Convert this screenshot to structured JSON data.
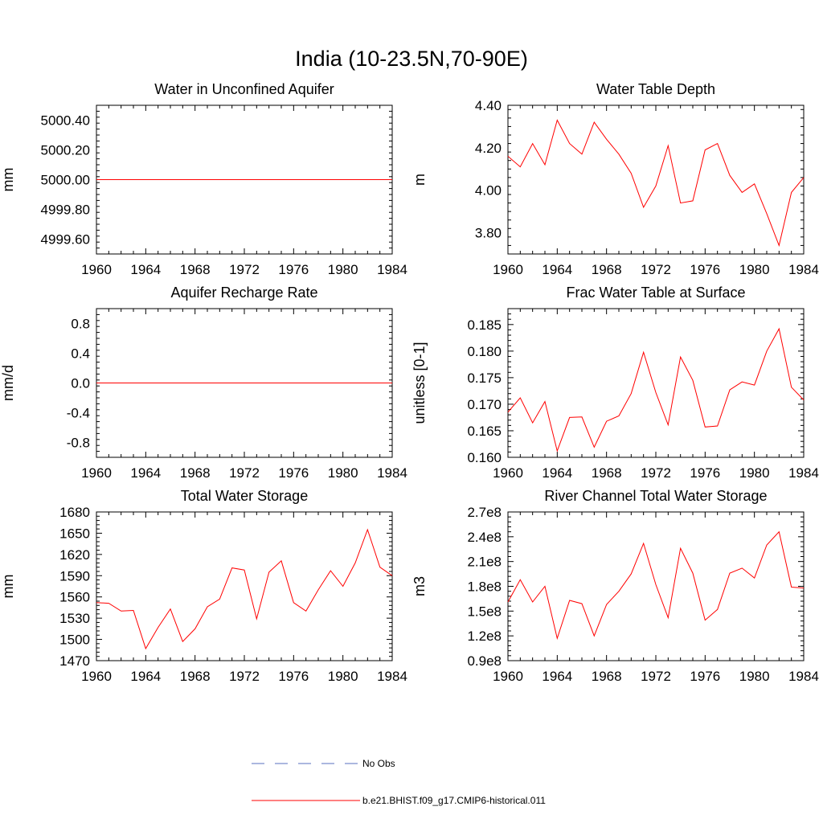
{
  "figure": {
    "title": "India (10-23.5N,70-90E)"
  },
  "legend": {
    "entries": [
      {
        "label": "No Obs",
        "color": "#5a6fbf",
        "style": "dashed"
      },
      {
        "label": "b.e21.BHIST.f09_g17.CMIP6-historical.011",
        "color": "#ff0000",
        "style": "solid"
      }
    ]
  },
  "chart_data": [
    {
      "type": "line",
      "title": "Water in Unconfined Aquifer",
      "ylabel": "mm",
      "xlim": [
        1960,
        1984
      ],
      "ylim": [
        4999.5,
        5000.5
      ],
      "xticks": [
        1960,
        1964,
        1968,
        1972,
        1976,
        1980,
        1984
      ],
      "yticks": [
        4999.6,
        4999.8,
        5000.0,
        5000.2,
        5000.4
      ],
      "ytick_labels": [
        "4999.60",
        "4999.80",
        "5000.00",
        "5000.20",
        "5000.40"
      ],
      "series": [
        {
          "color": "#ff0000",
          "x": [
            1960,
            1961,
            1962,
            1963,
            1964,
            1965,
            1966,
            1967,
            1968,
            1969,
            1970,
            1971,
            1972,
            1973,
            1974,
            1975,
            1976,
            1977,
            1978,
            1979,
            1980,
            1981,
            1982,
            1983,
            1984
          ],
          "y": [
            5000,
            5000,
            5000,
            5000,
            5000,
            5000,
            5000,
            5000,
            5000,
            5000,
            5000,
            5000,
            5000,
            5000,
            5000,
            5000,
            5000,
            5000,
            5000,
            5000,
            5000,
            5000,
            5000,
            5000,
            5000
          ]
        }
      ]
    },
    {
      "type": "line",
      "title": "Water Table Depth",
      "ylabel": "m",
      "xlim": [
        1960,
        1984
      ],
      "ylim": [
        3.7,
        4.4
      ],
      "xticks": [
        1960,
        1964,
        1968,
        1972,
        1976,
        1980,
        1984
      ],
      "yticks": [
        3.8,
        4.0,
        4.2,
        4.4
      ],
      "ytick_labels": [
        "3.80",
        "4.00",
        "4.20",
        "4.40"
      ],
      "series": [
        {
          "color": "#ff0000",
          "x": [
            1960,
            1961,
            1962,
            1963,
            1964,
            1965,
            1966,
            1967,
            1968,
            1969,
            1970,
            1971,
            1972,
            1973,
            1974,
            1975,
            1976,
            1977,
            1978,
            1979,
            1980,
            1981,
            1982,
            1983,
            1984
          ],
          "y": [
            4.16,
            4.11,
            4.22,
            4.12,
            4.33,
            4.22,
            4.17,
            4.32,
            4.24,
            4.17,
            4.08,
            3.92,
            4.02,
            4.21,
            3.94,
            3.95,
            4.19,
            4.22,
            4.07,
            3.99,
            4.03,
            3.89,
            3.74,
            3.99,
            4.06
          ]
        }
      ]
    },
    {
      "type": "line",
      "title": "Aquifer Recharge Rate",
      "ylabel": "mm/d",
      "xlim": [
        1960,
        1984
      ],
      "ylim": [
        -1.0,
        1.0
      ],
      "xticks": [
        1960,
        1964,
        1968,
        1972,
        1976,
        1980,
        1984
      ],
      "yticks": [
        -0.8,
        -0.4,
        0.0,
        0.4,
        0.8
      ],
      "ytick_labels": [
        "-0.8",
        "-0.4",
        "0.0",
        "0.4",
        "0.8"
      ],
      "series": [
        {
          "color": "#ff0000",
          "x": [
            1960,
            1961,
            1962,
            1963,
            1964,
            1965,
            1966,
            1967,
            1968,
            1969,
            1970,
            1971,
            1972,
            1973,
            1974,
            1975,
            1976,
            1977,
            1978,
            1979,
            1980,
            1981,
            1982,
            1983,
            1984
          ],
          "y": [
            0,
            0,
            0,
            0,
            0,
            0,
            0,
            0,
            0,
            0,
            0,
            0,
            0,
            0,
            0,
            0,
            0,
            0,
            0,
            0,
            0,
            0,
            0,
            0,
            0
          ]
        }
      ]
    },
    {
      "type": "line",
      "title": "Frac Water Table at Surface",
      "ylabel": "unitless [0-1]",
      "xlim": [
        1960,
        1984
      ],
      "ylim": [
        0.16,
        0.188
      ],
      "xticks": [
        1960,
        1964,
        1968,
        1972,
        1976,
        1980,
        1984
      ],
      "yticks": [
        0.16,
        0.165,
        0.17,
        0.175,
        0.18,
        0.185
      ],
      "ytick_labels": [
        "0.160",
        "0.165",
        "0.170",
        "0.175",
        "0.180",
        "0.185"
      ],
      "series": [
        {
          "color": "#ff0000",
          "x": [
            1960,
            1961,
            1962,
            1963,
            1964,
            1965,
            1966,
            1967,
            1968,
            1969,
            1970,
            1971,
            1972,
            1973,
            1974,
            1975,
            1976,
            1977,
            1978,
            1979,
            1980,
            1981,
            1982,
            1983,
            1984
          ],
          "y": [
            0.1685,
            0.1712,
            0.1665,
            0.1705,
            0.1612,
            0.1675,
            0.1676,
            0.1619,
            0.1668,
            0.1678,
            0.172,
            0.1798,
            0.1722,
            0.1661,
            0.1789,
            0.1745,
            0.1657,
            0.1659,
            0.1727,
            0.1742,
            0.1736,
            0.18,
            0.1842,
            0.1732,
            0.1708
          ]
        }
      ]
    },
    {
      "type": "line",
      "title": "Total Water Storage",
      "ylabel": "mm",
      "xlim": [
        1960,
        1984
      ],
      "ylim": [
        1470,
        1680
      ],
      "xticks": [
        1960,
        1964,
        1968,
        1972,
        1976,
        1980,
        1984
      ],
      "yticks": [
        1470,
        1500,
        1530,
        1560,
        1590,
        1620,
        1650,
        1680
      ],
      "ytick_labels": [
        "1470",
        "1500",
        "1530",
        "1560",
        "1590",
        "1620",
        "1650",
        "1680"
      ],
      "series": [
        {
          "color": "#ff0000",
          "x": [
            1960,
            1961,
            1962,
            1963,
            1964,
            1965,
            1966,
            1967,
            1968,
            1969,
            1970,
            1971,
            1972,
            1973,
            1974,
            1975,
            1976,
            1977,
            1978,
            1979,
            1980,
            1981,
            1982,
            1983,
            1984
          ],
          "y": [
            1552,
            1551,
            1540,
            1541,
            1487,
            1517,
            1543,
            1497,
            1515,
            1546,
            1557,
            1601,
            1598,
            1529,
            1595,
            1611,
            1552,
            1540,
            1570,
            1597,
            1575,
            1608,
            1655,
            1602,
            1590
          ]
        }
      ]
    },
    {
      "type": "line",
      "title": "River Channel Total Water Storage",
      "ylabel": "m3",
      "xlim": [
        1960,
        1984
      ],
      "ylim": [
        0.9,
        2.7
      ],
      "xticks": [
        1960,
        1964,
        1968,
        1972,
        1976,
        1980,
        1984
      ],
      "yticks": [
        0.9,
        1.2,
        1.5,
        1.8,
        2.1,
        2.4,
        2.7
      ],
      "ytick_labels": [
        "0.9e8",
        "1.2e8",
        "1.5e8",
        "1.8e8",
        "2.1e8",
        "2.4e8",
        "2.7e8"
      ],
      "series": [
        {
          "color": "#ff0000",
          "x": [
            1960,
            1961,
            1962,
            1963,
            1964,
            1965,
            1966,
            1967,
            1968,
            1969,
            1970,
            1971,
            1972,
            1973,
            1974,
            1975,
            1976,
            1977,
            1978,
            1979,
            1980,
            1981,
            1982,
            1983,
            1984
          ],
          "y": [
            1.61,
            1.88,
            1.61,
            1.8,
            1.17,
            1.63,
            1.59,
            1.2,
            1.58,
            1.74,
            1.95,
            2.32,
            1.82,
            1.42,
            2.26,
            1.96,
            1.39,
            1.52,
            1.96,
            2.02,
            1.9,
            2.3,
            2.46,
            1.79,
            1.78
          ]
        }
      ]
    }
  ]
}
